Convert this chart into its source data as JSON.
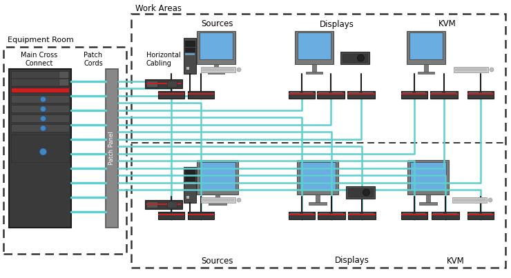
{
  "bg_color": "#ffffff",
  "title": "Work Areas",
  "eq_room_label": "Equipment Room",
  "main_cross_label": "Main Cross\nConnect",
  "patch_cords_label": "Patch\nCords",
  "patch_panel_label": "Patch Panel",
  "horizontal_cabling_label": "Horizontal\nCabling",
  "top_sources_label": "Sources",
  "top_displays_label": "Displays",
  "top_kvm_label": "KVM",
  "bot_sources_label": "Sources",
  "bot_displays_label": "Displays",
  "bot_kvm_label": "KVM",
  "cable_teal": "#5ecfcf",
  "cable_dark": "#1a1a1a",
  "monitor_blue": "#6aade0",
  "rack_fg": "#555555",
  "rack_dark": "#2a2a2a",
  "pp_color": "#888888",
  "device_dark": "#3a3a3a",
  "device_red": "#cc2020",
  "device_gray": "#666666"
}
